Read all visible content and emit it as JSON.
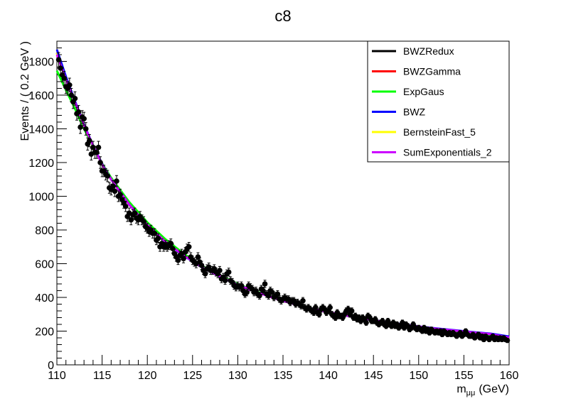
{
  "chart_data": {
    "type": "scatter",
    "title": "c8",
    "xlabel_main": "m",
    "xlabel_sub": "μμ",
    "xlabel_unit": "(GeV)",
    "ylabel": "Events / ( 0.2 GeV )",
    "xlim": [
      110,
      160
    ],
    "ylim": [
      0,
      1920
    ],
    "x_ticks": [
      110,
      115,
      120,
      125,
      130,
      135,
      140,
      145,
      150,
      155,
      160
    ],
    "y_ticks": [
      0,
      200,
      400,
      600,
      800,
      1000,
      1200,
      1400,
      1600,
      1800
    ],
    "grid": false,
    "legend_position": "top-right",
    "data_points": {
      "name": "data",
      "color": "#000000",
      "points": [
        [
          110.2,
          1810
        ],
        [
          110.4,
          1760
        ],
        [
          110.6,
          1720
        ],
        [
          110.8,
          1700
        ],
        [
          111.0,
          1650
        ],
        [
          111.2,
          1640
        ],
        [
          111.4,
          1660
        ],
        [
          111.6,
          1600
        ],
        [
          111.8,
          1560
        ],
        [
          112.0,
          1580
        ],
        [
          112.2,
          1490
        ],
        [
          112.4,
          1500
        ],
        [
          112.6,
          1410
        ],
        [
          112.8,
          1470
        ],
        [
          113.0,
          1460
        ],
        [
          113.2,
          1400
        ],
        [
          113.4,
          1310
        ],
        [
          113.6,
          1330
        ],
        [
          113.8,
          1250
        ],
        [
          114.0,
          1290
        ],
        [
          114.2,
          1260
        ],
        [
          114.4,
          1260
        ],
        [
          114.6,
          1290
        ],
        [
          114.8,
          1200
        ],
        [
          115.0,
          1150
        ],
        [
          115.2,
          1150
        ],
        [
          115.4,
          1130
        ],
        [
          115.6,
          1120
        ],
        [
          115.8,
          1050
        ],
        [
          116.0,
          1040
        ],
        [
          116.2,
          1060
        ],
        [
          116.4,
          1030
        ],
        [
          116.6,
          1090
        ],
        [
          116.8,
          1000
        ],
        [
          117.0,
          1010
        ],
        [
          117.2,
          980
        ],
        [
          117.4,
          960
        ],
        [
          117.6,
          940
        ],
        [
          117.8,
          880
        ],
        [
          118.0,
          900
        ],
        [
          118.2,
          860
        ],
        [
          118.4,
          890
        ],
        [
          118.6,
          900
        ],
        [
          118.8,
          870
        ],
        [
          119.0,
          860
        ],
        [
          119.2,
          880
        ],
        [
          119.4,
          860
        ],
        [
          119.6,
          850
        ],
        [
          119.8,
          820
        ],
        [
          120.0,
          810
        ],
        [
          120.2,
          790
        ],
        [
          120.4,
          800
        ],
        [
          120.6,
          780
        ],
        [
          120.8,
          780
        ],
        [
          121.0,
          740
        ],
        [
          121.2,
          750
        ],
        [
          121.4,
          700
        ],
        [
          121.6,
          720
        ],
        [
          121.8,
          700
        ],
        [
          122.0,
          710
        ],
        [
          122.2,
          700
        ],
        [
          122.4,
          710
        ],
        [
          122.6,
          720
        ],
        [
          122.8,
          690
        ],
        [
          123.0,
          660
        ],
        [
          123.2,
          640
        ],
        [
          123.4,
          620
        ],
        [
          123.6,
          650
        ],
        [
          123.8,
          660
        ],
        [
          124.0,
          630
        ],
        [
          124.2,
          670
        ],
        [
          124.4,
          690
        ],
        [
          124.6,
          700
        ],
        [
          124.8,
          640
        ],
        [
          125.0,
          620
        ],
        [
          125.2,
          610
        ],
        [
          125.4,
          600
        ],
        [
          125.6,
          640
        ],
        [
          125.8,
          610
        ],
        [
          126.0,
          590
        ],
        [
          126.2,
          560
        ],
        [
          126.4,
          540
        ],
        [
          126.6,
          570
        ],
        [
          126.8,
          580
        ],
        [
          127.0,
          560
        ],
        [
          127.2,
          560
        ],
        [
          127.4,
          570
        ],
        [
          127.6,
          550
        ],
        [
          127.8,
          540
        ],
        [
          128.0,
          560
        ],
        [
          128.2,
          510
        ],
        [
          128.4,
          520
        ],
        [
          128.6,
          500
        ],
        [
          128.8,
          540
        ],
        [
          129.0,
          550
        ],
        [
          129.2,
          500
        ],
        [
          129.4,
          490
        ],
        [
          129.6,
          470
        ],
        [
          129.8,
          460
        ],
        [
          130.0,
          470
        ],
        [
          130.2,
          460
        ],
        [
          130.4,
          470
        ],
        [
          130.6,
          440
        ],
        [
          130.8,
          420
        ],
        [
          131.0,
          430
        ],
        [
          131.2,
          470
        ],
        [
          131.4,
          460
        ],
        [
          131.6,
          450
        ],
        [
          131.8,
          430
        ],
        [
          132.0,
          440
        ],
        [
          132.2,
          420
        ],
        [
          132.4,
          410
        ],
        [
          132.6,
          450
        ],
        [
          132.8,
          440
        ],
        [
          133.0,
          480
        ],
        [
          133.2,
          420
        ],
        [
          133.4,
          410
        ],
        [
          133.6,
          440
        ],
        [
          133.8,
          430
        ],
        [
          134.0,
          400
        ],
        [
          134.2,
          410
        ],
        [
          134.4,
          420
        ],
        [
          134.6,
          390
        ],
        [
          134.8,
          380
        ],
        [
          135.0,
          390
        ],
        [
          135.2,
          400
        ],
        [
          135.4,
          390
        ],
        [
          135.6,
          390
        ],
        [
          135.8,
          370
        ],
        [
          136.0,
          380
        ],
        [
          136.2,
          380
        ],
        [
          136.4,
          360
        ],
        [
          136.6,
          370
        ],
        [
          136.8,
          360
        ],
        [
          137.0,
          350
        ],
        [
          137.2,
          380
        ],
        [
          137.4,
          340
        ],
        [
          137.6,
          330
        ],
        [
          137.8,
          340
        ],
        [
          138.0,
          330
        ],
        [
          138.2,
          320
        ],
        [
          138.4,
          310
        ],
        [
          138.6,
          340
        ],
        [
          138.8,
          310
        ],
        [
          139.0,
          300
        ],
        [
          139.2,
          330
        ],
        [
          139.4,
          340
        ],
        [
          139.6,
          330
        ],
        [
          139.8,
          310
        ],
        [
          140.0,
          320
        ],
        [
          140.2,
          340
        ],
        [
          140.4,
          300
        ],
        [
          140.6,
          290
        ],
        [
          140.8,
          280
        ],
        [
          141.0,
          310
        ],
        [
          141.2,
          290
        ],
        [
          141.4,
          290
        ],
        [
          141.6,
          280
        ],
        [
          141.8,
          300
        ],
        [
          142.0,
          320
        ],
        [
          142.2,
          330
        ],
        [
          142.4,
          300
        ],
        [
          142.6,
          320
        ],
        [
          142.8,
          280
        ],
        [
          143.0,
          290
        ],
        [
          143.2,
          270
        ],
        [
          143.4,
          280
        ],
        [
          143.6,
          260
        ],
        [
          143.8,
          280
        ],
        [
          144.0,
          270
        ],
        [
          144.2,
          250
        ],
        [
          144.4,
          290
        ],
        [
          144.6,
          280
        ],
        [
          144.8,
          260
        ],
        [
          145.0,
          260
        ],
        [
          145.2,
          270
        ],
        [
          145.4,
          250
        ],
        [
          145.6,
          240
        ],
        [
          145.8,
          250
        ],
        [
          146.0,
          260
        ],
        [
          146.2,
          240
        ],
        [
          146.4,
          230
        ],
        [
          146.6,
          260
        ],
        [
          146.8,
          240
        ],
        [
          147.0,
          230
        ],
        [
          147.2,
          250
        ],
        [
          147.4,
          230
        ],
        [
          147.6,
          240
        ],
        [
          147.8,
          220
        ],
        [
          148.0,
          230
        ],
        [
          148.2,
          250
        ],
        [
          148.4,
          220
        ],
        [
          148.6,
          240
        ],
        [
          148.8,
          230
        ],
        [
          149.0,
          210
        ],
        [
          149.2,
          220
        ],
        [
          149.4,
          240
        ],
        [
          149.6,
          220
        ],
        [
          149.8,
          210
        ],
        [
          150.0,
          220
        ],
        [
          150.2,
          210
        ],
        [
          150.4,
          200
        ],
        [
          150.6,
          220
        ],
        [
          150.8,
          200
        ],
        [
          151.0,
          210
        ],
        [
          151.2,
          190
        ],
        [
          151.4,
          210
        ],
        [
          151.6,
          200
        ],
        [
          151.8,
          190
        ],
        [
          152.0,
          200
        ],
        [
          152.2,
          190
        ],
        [
          152.4,
          200
        ],
        [
          152.6,
          180
        ],
        [
          152.8,
          200
        ],
        [
          153.0,
          190
        ],
        [
          153.2,
          180
        ],
        [
          153.4,
          190
        ],
        [
          153.6,
          180
        ],
        [
          153.8,
          190
        ],
        [
          154.0,
          180
        ],
        [
          154.2,
          170
        ],
        [
          154.4,
          180
        ],
        [
          154.6,
          190
        ],
        [
          154.8,
          170
        ],
        [
          155.0,
          180
        ],
        [
          155.2,
          200
        ],
        [
          155.4,
          180
        ],
        [
          155.6,
          170
        ],
        [
          155.8,
          170
        ],
        [
          156.0,
          180
        ],
        [
          156.2,
          160
        ],
        [
          156.4,
          170
        ],
        [
          156.6,
          180
        ],
        [
          156.8,
          160
        ],
        [
          157.0,
          170
        ],
        [
          157.2,
          150
        ],
        [
          157.4,
          170
        ],
        [
          157.6,
          160
        ],
        [
          157.8,
          150
        ],
        [
          158.0,
          160
        ],
        [
          158.2,
          170
        ],
        [
          158.4,
          150
        ],
        [
          158.6,
          160
        ],
        [
          158.8,
          150
        ],
        [
          159.0,
          160
        ],
        [
          159.2,
          150
        ],
        [
          159.4,
          160
        ],
        [
          159.6,
          150
        ],
        [
          159.8,
          145
        ]
      ]
    },
    "series": [
      {
        "name": "BWZRedux",
        "color": "#000000",
        "x": [
          110,
          111,
          112,
          113,
          114,
          115,
          116,
          118,
          120,
          122,
          124,
          126,
          128,
          130,
          132,
          134,
          136,
          138,
          140,
          142,
          144,
          146,
          148,
          150,
          152,
          154,
          156,
          158,
          160
        ],
        "y": [
          1850,
          1700,
          1560,
          1420,
          1300,
          1190,
          1100,
          950,
          830,
          730,
          650,
          580,
          525,
          475,
          433,
          396,
          364,
          337,
          313,
          292,
          273,
          256,
          241,
          227,
          214,
          203,
          192,
          182,
          164
        ]
      },
      {
        "name": "BWZGamma",
        "color": "#ff0000",
        "x": [
          110,
          111,
          112,
          113,
          114,
          115,
          116,
          118,
          120,
          122,
          124,
          126,
          128,
          130,
          132,
          134,
          136,
          138,
          140,
          142,
          144,
          146,
          148,
          150,
          152,
          154,
          156,
          158,
          160
        ],
        "y": [
          1850,
          1700,
          1560,
          1420,
          1300,
          1190,
          1100,
          950,
          830,
          730,
          650,
          580,
          525,
          475,
          433,
          396,
          364,
          337,
          313,
          292,
          273,
          256,
          241,
          227,
          214,
          203,
          192,
          182,
          164
        ]
      },
      {
        "name": "ExpGaus",
        "color": "#00ff00",
        "x": [
          110,
          111,
          112,
          113,
          114,
          115,
          116,
          118,
          120,
          122,
          124,
          126,
          128,
          130,
          132,
          134,
          136,
          138,
          140,
          142,
          144,
          146,
          148,
          150,
          152,
          154,
          156,
          158,
          160
        ],
        "y": [
          1745,
          1630,
          1520,
          1400,
          1295,
          1195,
          1110,
          965,
          845,
          745,
          660,
          588,
          530,
          480,
          436,
          398,
          366,
          338,
          313,
          291,
          271,
          254,
          238,
          223,
          210,
          198,
          187,
          177,
          158
        ]
      },
      {
        "name": "BWZ",
        "color": "#0000ff",
        "x": [
          110,
          111,
          112,
          113,
          114,
          115,
          116,
          118,
          120,
          122,
          124,
          126,
          128,
          130,
          132,
          134,
          136,
          138,
          140,
          142,
          144,
          146,
          148,
          150,
          152,
          154,
          156,
          158,
          160
        ],
        "y": [
          1870,
          1710,
          1565,
          1425,
          1302,
          1192,
          1100,
          950,
          829,
          729,
          648,
          580,
          524,
          475,
          433,
          396,
          364,
          337,
          313,
          292,
          273,
          257,
          242,
          228,
          216,
          205,
          194,
          185,
          168
        ]
      },
      {
        "name": "BernsteinFast_5",
        "color": "#ffff00",
        "x": [
          110,
          111,
          112,
          113,
          114,
          115,
          116,
          118,
          120,
          122,
          124,
          126,
          128,
          130,
          132,
          134,
          136,
          138,
          140,
          142,
          144,
          146,
          148,
          150,
          152,
          154,
          156,
          158,
          160
        ],
        "y": [
          1850,
          1700,
          1560,
          1420,
          1300,
          1190,
          1100,
          950,
          830,
          730,
          650,
          580,
          525,
          475,
          433,
          396,
          364,
          337,
          313,
          292,
          273,
          256,
          241,
          227,
          214,
          203,
          192,
          182,
          160
        ]
      },
      {
        "name": "SumExponentials_2",
        "color": "#cc00ff",
        "x": [
          110,
          111,
          112,
          113,
          114,
          115,
          116,
          118,
          120,
          122,
          124,
          126,
          128,
          130,
          132,
          134,
          136,
          138,
          140,
          142,
          144,
          146,
          148,
          150,
          152,
          154,
          156,
          158,
          160
        ],
        "y": [
          1840,
          1695,
          1558,
          1420,
          1300,
          1190,
          1100,
          950,
          830,
          730,
          650,
          580,
          525,
          475,
          433,
          396,
          364,
          337,
          313,
          292,
          273,
          256,
          241,
          227,
          214,
          203,
          192,
          182,
          162
        ]
      }
    ]
  }
}
